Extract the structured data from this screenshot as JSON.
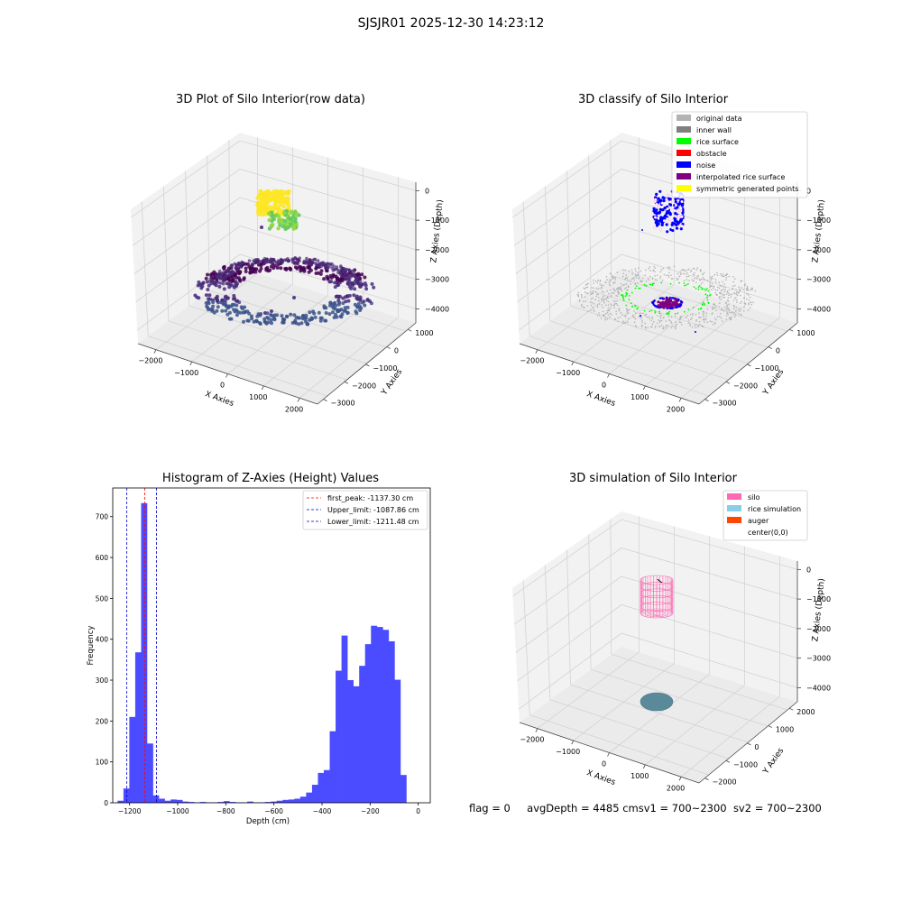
{
  "suptitle": "SJSJR01 2025-12-30 14:23:12",
  "panel_titles": {
    "raw": "3D Plot of Silo Interior(row data)",
    "classify": "3D classify of Silo Interior",
    "hist": "Histogram of Z-Axies (Height) Values",
    "sim": "3D simulation of Silo Interior"
  },
  "axis_labels": {
    "x": "X Axies",
    "y": "Y Axies",
    "z": "Z Axies (Depth)"
  },
  "footer": {
    "flag": "flag = 0",
    "rest": "avgDepth = 4485 cmsv1 = 700~2300  sv2 = 700~2300"
  },
  "colors": {
    "hist_bar": "#4b4bff",
    "peak_line": "#ff0000",
    "limit_line": "#0000cc",
    "silo": "#ff69b4",
    "rice": "#87ceeb",
    "auger": "#ff4500",
    "original_data": "#b3b3b3",
    "inner_wall": "#808080",
    "rice_surface": "#00ff00",
    "obstacle": "#ff0000",
    "noise": "#0000ff",
    "interpolated": "#800080",
    "symmetric": "#ffff00"
  },
  "classify_legend": [
    {
      "label": "original data",
      "color": "#b3b3b3"
    },
    {
      "label": "inner wall",
      "color": "#808080"
    },
    {
      "label": "rice surface",
      "color": "#00ff00"
    },
    {
      "label": "obstacle",
      "color": "#ff0000"
    },
    {
      "label": "noise",
      "color": "#0000ff"
    },
    {
      "label": "interpolated rice surface",
      "color": "#800080"
    },
    {
      "label": "symmetric generated points",
      "color": "#ffff00"
    }
  ],
  "sim_legend": [
    {
      "label": "silo",
      "color": "#ff69b4"
    },
    {
      "label": "rice simulation",
      "color": "#87ceeb"
    },
    {
      "label": "auger",
      "color": "#ff4500"
    },
    {
      "label": "center(0,0)",
      "color": ""
    }
  ],
  "ticks3d": {
    "raw": {
      "x": [
        "−2000",
        "−1000",
        "0",
        "1000",
        "2000"
      ],
      "y": [
        "1000",
        "0",
        "−1000",
        "−2000",
        "−3000"
      ],
      "z": [
        "0",
        "−1000",
        "−2000",
        "−3000",
        "−4000"
      ]
    },
    "classify": {
      "x": [
        "−2000",
        "−1000",
        "0",
        "1000",
        "2000"
      ],
      "y": [
        "1000",
        "0",
        "−1000",
        "−2000",
        "−3000"
      ],
      "z": [
        "0",
        "−1000",
        "−2000",
        "−3000",
        "−4000"
      ]
    },
    "sim": {
      "x": [
        "−2000",
        "−1000",
        "0",
        "1000",
        "2000"
      ],
      "y": [
        "2000",
        "1000",
        "0",
        "−1000",
        "−2000"
      ],
      "z": [
        "0",
        "−1000",
        "−2000",
        "−3000",
        "−4000"
      ]
    }
  },
  "chart_data": [
    {
      "type": "scatter",
      "panel": "raw",
      "title": "3D Plot of Silo Interior(row data)",
      "xlabel": "X Axies",
      "ylabel": "Y Axies",
      "zlabel": "Z Axies (Depth)",
      "xlim": [
        -2500,
        2500
      ],
      "ylim": [
        -3000,
        1500
      ],
      "zlim": [
        -4500,
        0
      ],
      "grid": true
    },
    {
      "type": "scatter",
      "panel": "classify",
      "title": "3D classify of Silo Interior",
      "xlabel": "X Axies",
      "ylabel": "Y Axies",
      "zlabel": "Z Axies (Depth)",
      "xlim": [
        -2500,
        2500
      ],
      "ylim": [
        -3000,
        1500
      ],
      "zlim": [
        -4500,
        0
      ],
      "legend": [
        "original data",
        "inner wall",
        "rice surface",
        "obstacle",
        "noise",
        "interpolated rice surface",
        "symmetric generated points"
      ],
      "legend_position": "top-right",
      "grid": true
    },
    {
      "type": "bar",
      "panel": "hist",
      "title": "Histogram of Z-Axies (Height) Values",
      "xlabel": "Depth (cm)",
      "ylabel": "Frequency",
      "xlim": [
        -1270,
        50
      ],
      "ylim": [
        0,
        770
      ],
      "xticks": [
        -1200,
        -1000,
        -800,
        -600,
        -400,
        -200,
        0
      ],
      "xtick_labels": [
        "−1200",
        "−1000",
        "−800",
        "−600",
        "−400",
        "−200",
        "0"
      ],
      "yticks": [
        0,
        100,
        200,
        300,
        400,
        500,
        600,
        700
      ],
      "bin_width": 24.5,
      "bin_start": -1250,
      "values": [
        5,
        35,
        210,
        368,
        733,
        145,
        18,
        10,
        5,
        8,
        7,
        3,
        2,
        1,
        2,
        1,
        1,
        2,
        4,
        2,
        1,
        1,
        3,
        1,
        1,
        2,
        3,
        5,
        7,
        8,
        10,
        15,
        25,
        44,
        73,
        80,
        175,
        323,
        409,
        300,
        285,
        335,
        388,
        433,
        430,
        423,
        395,
        301,
        68
      ],
      "vlines": [
        {
          "x": -1137.3,
          "label": "first_peak: -1137.30 cm",
          "color": "#ff0000"
        },
        {
          "x": -1087.86,
          "label": "Upper_limit: -1087.86 cm",
          "color": "#0000cc"
        },
        {
          "x": -1211.48,
          "label": "Lower_limit: -1211.48 cm",
          "color": "#0000cc"
        }
      ],
      "legend_position": "top-right",
      "grid": false
    },
    {
      "type": "scatter",
      "panel": "sim",
      "title": "3D simulation of Silo Interior",
      "xlabel": "X Axies",
      "ylabel": "Y Axies",
      "zlabel": "Z Axies (Depth)",
      "xlim": [
        -2500,
        2500
      ],
      "ylim": [
        -2500,
        2500
      ],
      "zlim": [
        -4500,
        0
      ],
      "legend": [
        "silo",
        "rice simulation",
        "auger",
        "center(0,0)"
      ],
      "legend_position": "top-right",
      "grid": true
    }
  ]
}
